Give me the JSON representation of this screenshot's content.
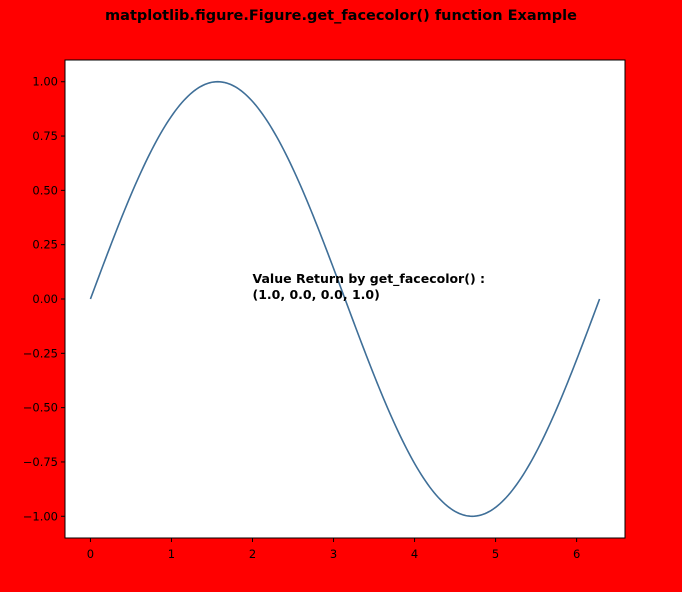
{
  "chart_data": {
    "type": "line",
    "title": "matplotlib.figure.Figure.get_facecolor() function Example",
    "xlabel": "",
    "ylabel": "",
    "xlim": [
      -0.314,
      6.597
    ],
    "ylim": [
      -1.1,
      1.1
    ],
    "x_ticks": [
      0,
      1,
      2,
      3,
      4,
      5,
      6
    ],
    "x_tick_labels": [
      "0",
      "1",
      "2",
      "3",
      "4",
      "5",
      "6"
    ],
    "y_ticks": [
      1.0,
      0.75,
      0.5,
      0.25,
      0.0,
      -0.25,
      -0.5,
      -0.75,
      -1.0
    ],
    "y_tick_labels": [
      "1.00",
      "0.75",
      "0.50",
      "0.25",
      "0.00",
      "−0.25",
      "−0.50",
      "−0.75",
      "−1.00"
    ],
    "grid": false,
    "figure_facecolor": "#ff0000",
    "axes_facecolor": "#ffffff",
    "series": [
      {
        "function": "sin(x)",
        "color": "#3f6f98",
        "x": [
          0.0,
          0.3307,
          0.6614,
          0.9921,
          1.3228,
          1.6535,
          1.9842,
          2.3149,
          2.6456,
          2.9762,
          3.3069,
          3.6376,
          3.9683,
          4.299,
          4.6297,
          4.9604,
          5.2911,
          5.6218,
          5.9525,
          6.2832
        ],
        "y": [
          0.0,
          0.3247,
          0.6142,
          0.8372,
          0.9694,
          0.9966,
          0.9158,
          0.7357,
          0.4759,
          0.1646,
          -0.1646,
          -0.4759,
          -0.7357,
          -0.9158,
          -0.9966,
          -0.9694,
          -0.8372,
          -0.6142,
          -0.3247,
          0.0
        ]
      }
    ],
    "annotation": {
      "line1": "Value Return by get_facecolor() :",
      "line2": "(1.0, 0.0, 0.0, 1.0)",
      "x": 2.0,
      "y": 0.0
    }
  }
}
